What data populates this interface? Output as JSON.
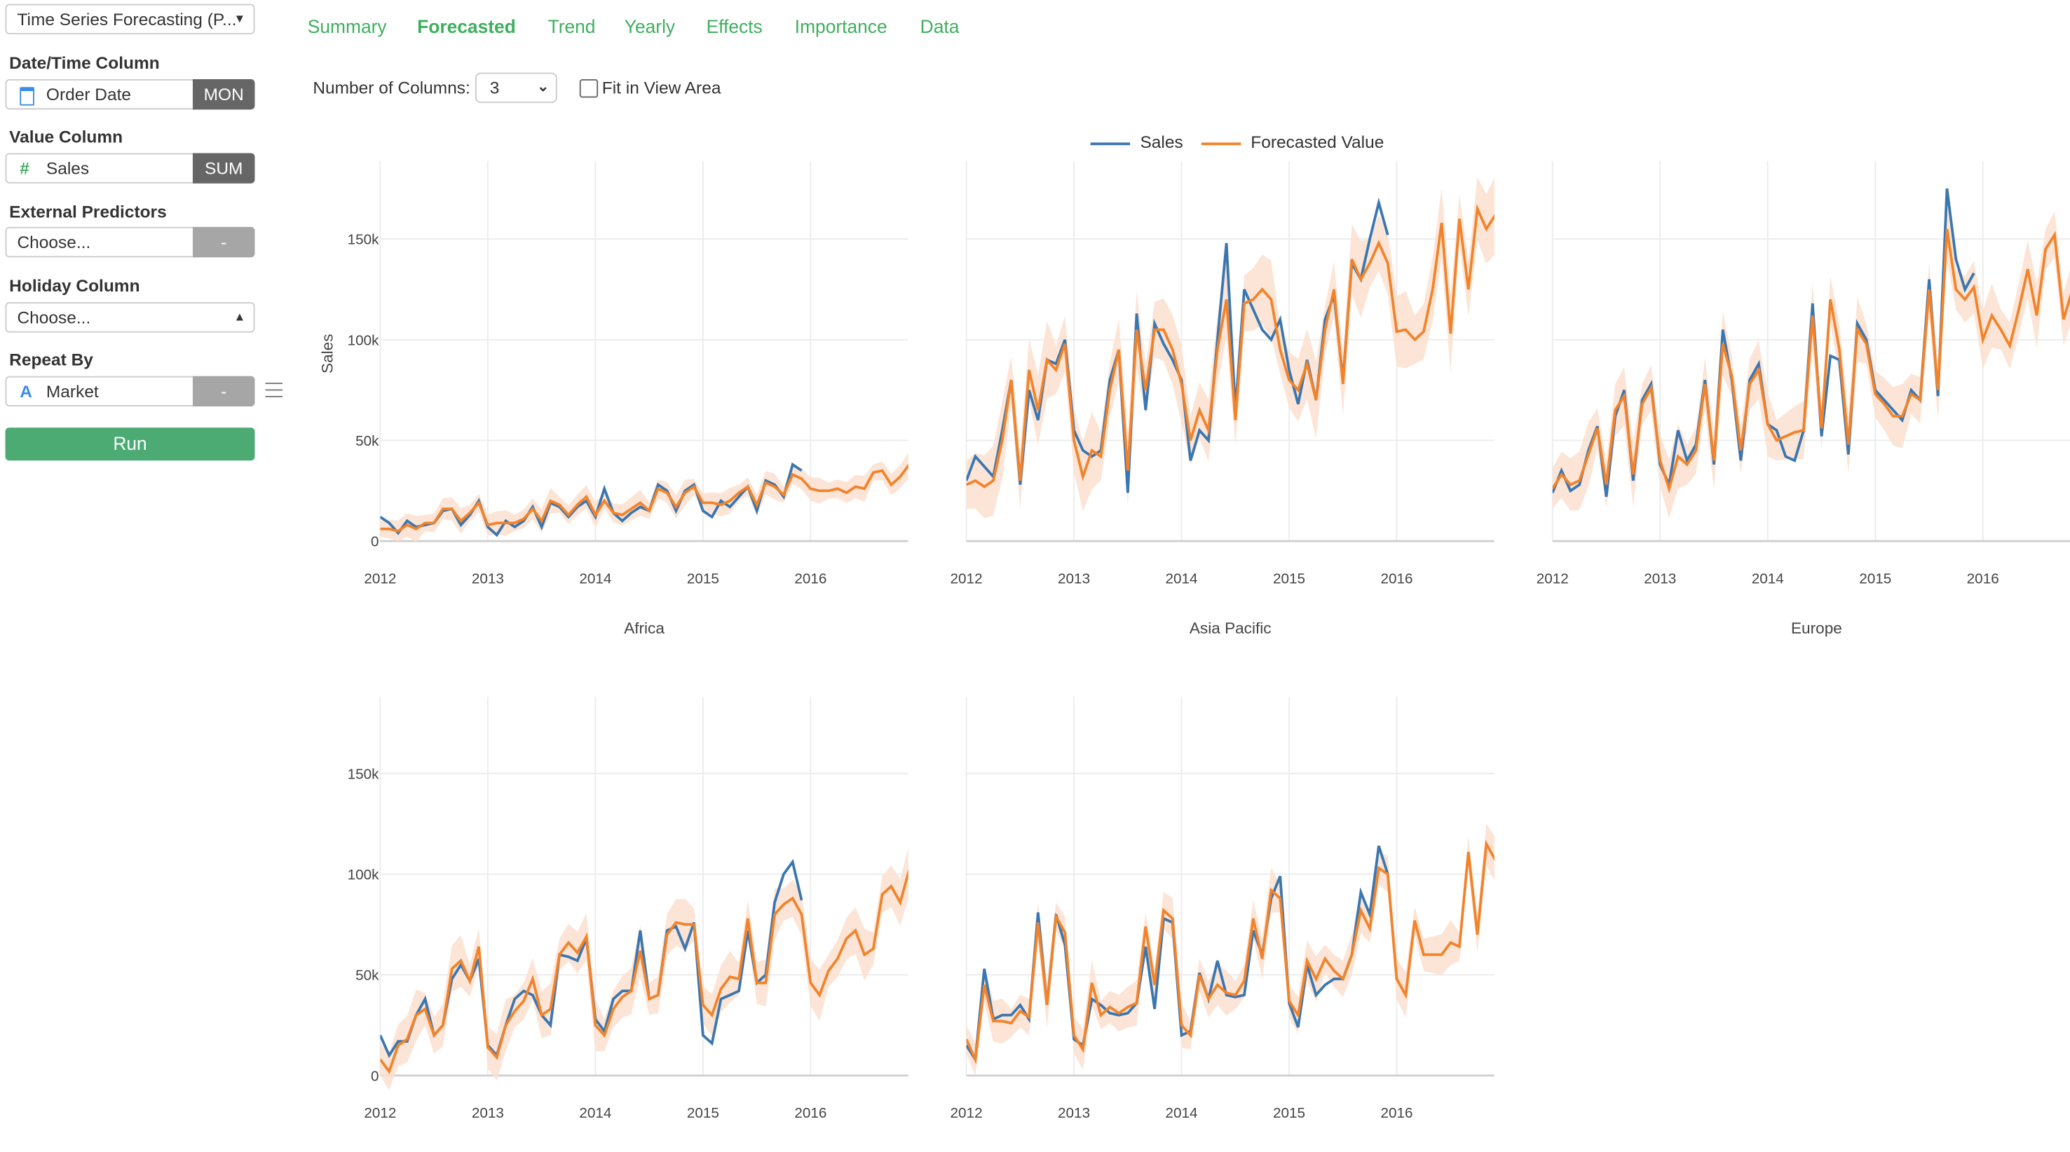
{
  "sidebar": {
    "analytics_select": "Time Series Forecasting (P...",
    "datetime_label": "Date/Time Column",
    "datetime_value": "Order Date",
    "datetime_unit": "MON",
    "value_label": "Value Column",
    "value_value": "Sales",
    "value_agg": "SUM",
    "ext_label": "External Predictors",
    "ext_value": "Choose...",
    "ext_btn": "-",
    "holiday_label": "Holiday Column",
    "holiday_value": "Choose...",
    "repeat_label": "Repeat By",
    "repeat_value": "Market",
    "repeat_btn": "-",
    "run": "Run"
  },
  "tabs": [
    {
      "label": "Summary"
    },
    {
      "label": "Forecasted",
      "active": true
    },
    {
      "label": "Trend"
    },
    {
      "label": "Yearly"
    },
    {
      "label": "Effects"
    },
    {
      "label": "Importance"
    },
    {
      "label": "Data"
    }
  ],
  "toolbar": {
    "columns_label": "Number of Columns:",
    "columns_value": "3",
    "fit_label": "Fit in View Area",
    "fit_checked": false
  },
  "colors": {
    "sales": "#3a76b0",
    "forecast": "#f2832b",
    "band": "#fbe1cf",
    "accent": "#3fae5f"
  },
  "chart_data": {
    "type": "line",
    "legend": [
      "Sales",
      "Forecasted Value"
    ],
    "legend_position": "top",
    "ylabel": "Sales",
    "yticks": [
      "0",
      "50k",
      "100k",
      "150k"
    ],
    "xticks": [
      "2012",
      "2013",
      "2014",
      "2015",
      "2016"
    ],
    "ylim": [
      0,
      180000
    ],
    "x_start": "2012-01",
    "frequency": "monthly",
    "grid": true,
    "panels": [
      {
        "title": "Africa",
        "uncertainty": 4000,
        "sales": [
          12000,
          9000,
          4000,
          10000,
          7000,
          8000,
          9000,
          15000,
          16000,
          8000,
          13000,
          20000,
          7000,
          3000,
          10000,
          7000,
          10000,
          17000,
          7000,
          19000,
          17000,
          12000,
          17000,
          20000,
          12000,
          26000,
          14000,
          10000,
          14000,
          17000,
          15000,
          28000,
          25000,
          15000,
          25000,
          28000,
          15000,
          12000,
          20000,
          17000,
          22000,
          27000,
          15000,
          30000,
          28000,
          22000,
          38000,
          35000
        ],
        "forecast": [
          6000,
          6000,
          5000,
          8000,
          6000,
          9000,
          9000,
          16000,
          16000,
          10000,
          14000,
          19000,
          8000,
          9000,
          9000,
          9000,
          11000,
          16000,
          10000,
          20000,
          18000,
          13000,
          18000,
          22000,
          13000,
          20000,
          14000,
          13000,
          16000,
          19000,
          15000,
          26000,
          24000,
          17000,
          24000,
          27000,
          19000,
          19000,
          18000,
          20000,
          24000,
          27000,
          18000,
          29000,
          27000,
          23000,
          33000,
          31000,
          26000,
          25000,
          25000,
          26000,
          24000,
          27000,
          26000,
          34000,
          35000,
          28000,
          32000,
          38000
        ]
      },
      {
        "title": "Asia Pacific",
        "uncertainty": 12000,
        "sales": [
          30000,
          42000,
          37000,
          32000,
          55000,
          80000,
          28000,
          75000,
          60000,
          90000,
          88000,
          100000,
          55000,
          45000,
          42000,
          45000,
          80000,
          95000,
          24000,
          113000,
          65000,
          108000,
          98000,
          90000,
          80000,
          40000,
          55000,
          50000,
          100000,
          148000,
          65000,
          125000,
          115000,
          105000,
          100000,
          110000,
          85000,
          68000,
          90000,
          70000,
          110000,
          122000,
          80000,
          138000,
          130000,
          150000,
          168000,
          152000
        ],
        "forecast": [
          28000,
          30000,
          27000,
          30000,
          50000,
          80000,
          30000,
          85000,
          65000,
          90000,
          85000,
          98000,
          50000,
          32000,
          45000,
          42000,
          75000,
          95000,
          35000,
          105000,
          75000,
          105000,
          105000,
          95000,
          78000,
          50000,
          65000,
          55000,
          95000,
          120000,
          60000,
          118000,
          120000,
          125000,
          120000,
          95000,
          80000,
          75000,
          88000,
          70000,
          105000,
          125000,
          78000,
          140000,
          130000,
          138000,
          148000,
          138000,
          104000,
          105000,
          100000,
          104000,
          125000,
          158000,
          103000,
          160000,
          125000,
          165000,
          155000,
          162000
        ]
      },
      {
        "title": "Europe",
        "uncertainty": 10000,
        "sales": [
          24000,
          35000,
          25000,
          28000,
          45000,
          57000,
          22000,
          62000,
          75000,
          30000,
          70000,
          78000,
          38000,
          28000,
          55000,
          40000,
          48000,
          80000,
          38000,
          105000,
          80000,
          40000,
          80000,
          88000,
          58000,
          55000,
          42000,
          40000,
          55000,
          118000,
          52000,
          92000,
          90000,
          43000,
          108000,
          100000,
          75000,
          70000,
          65000,
          60000,
          75000,
          70000,
          130000,
          72000,
          175000,
          140000,
          125000,
          133000
        ],
        "forecast": [
          26000,
          33000,
          28000,
          30000,
          43000,
          56000,
          28000,
          65000,
          72000,
          33000,
          68000,
          76000,
          40000,
          26000,
          42000,
          38000,
          45000,
          78000,
          40000,
          98000,
          82000,
          45000,
          78000,
          85000,
          58000,
          50000,
          52000,
          54000,
          55000,
          112000,
          56000,
          120000,
          95000,
          48000,
          105000,
          98000,
          73000,
          68000,
          62000,
          62000,
          73000,
          70000,
          125000,
          75000,
          155000,
          125000,
          120000,
          126000,
          100000,
          112000,
          105000,
          97000,
          115000,
          135000,
          112000,
          145000,
          152000,
          110000,
          125000,
          140000
        ]
      },
      {
        "title": "",
        "uncertainty": 8000,
        "sales": [
          20000,
          10000,
          17000,
          17000,
          30000,
          38000,
          20000,
          25000,
          48000,
          55000,
          47000,
          58000,
          15000,
          10000,
          25000,
          38000,
          42000,
          40000,
          30000,
          25000,
          60000,
          59000,
          57000,
          68000,
          28000,
          22000,
          38000,
          42000,
          42000,
          72000,
          38000,
          40000,
          72000,
          74000,
          63000,
          76000,
          20000,
          16000,
          38000,
          40000,
          42000,
          72000,
          46000,
          50000,
          86000,
          100000,
          106000,
          87000
        ],
        "forecast": [
          8000,
          2000,
          15000,
          18000,
          30000,
          33000,
          20000,
          25000,
          53000,
          57000,
          47000,
          64000,
          14000,
          9000,
          25000,
          32000,
          37000,
          48000,
          30000,
          33000,
          60000,
          66000,
          61000,
          69000,
          25000,
          20000,
          33000,
          39000,
          42000,
          62000,
          38000,
          40000,
          70000,
          76000,
          75000,
          75000,
          35000,
          30000,
          43000,
          49000,
          48000,
          78000,
          46000,
          46000,
          80000,
          85000,
          88000,
          80000,
          46000,
          40000,
          52000,
          58000,
          68000,
          72000,
          60000,
          63000,
          90000,
          94000,
          86000,
          102000
        ]
      },
      {
        "title": "",
        "uncertainty": 7000,
        "sales": [
          15000,
          8000,
          53000,
          28000,
          30000,
          30000,
          35000,
          28000,
          81000,
          35000,
          80000,
          65000,
          18000,
          15000,
          38000,
          35000,
          31000,
          30000,
          31000,
          36000,
          64000,
          33000,
          78000,
          76000,
          20000,
          22000,
          51000,
          38000,
          57000,
          40000,
          39000,
          40000,
          72000,
          60000,
          88000,
          99000,
          36000,
          24000,
          55000,
          40000,
          45000,
          48000,
          48000,
          60000,
          91000,
          80000,
          114000,
          100000
        ],
        "forecast": [
          18000,
          8000,
          45000,
          27000,
          27000,
          26000,
          32000,
          29000,
          76000,
          35000,
          79000,
          71000,
          20000,
          13000,
          46000,
          30000,
          34000,
          31000,
          34000,
          36000,
          74000,
          45000,
          82000,
          78000,
          25000,
          20000,
          50000,
          38000,
          45000,
          41000,
          40000,
          47000,
          78000,
          58000,
          92000,
          88000,
          37000,
          30000,
          57000,
          48000,
          58000,
          52000,
          48000,
          60000,
          82000,
          73000,
          103000,
          100000,
          48000,
          40000,
          77000,
          60000,
          60000,
          60000,
          66000,
          64000,
          111000,
          70000,
          115000,
          107000
        ]
      }
    ]
  }
}
